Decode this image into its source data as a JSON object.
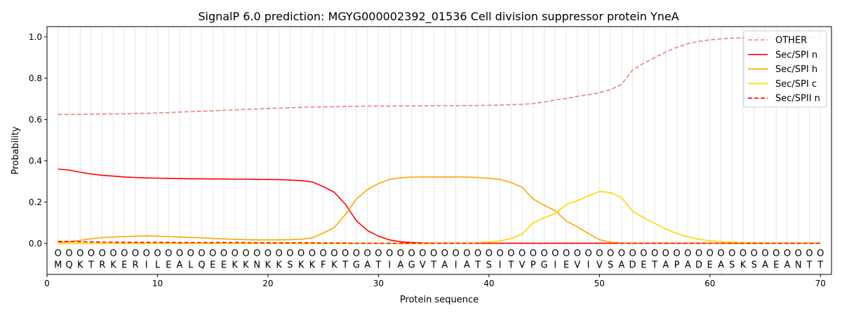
{
  "chart_data": {
    "type": "line",
    "title": "SignalP 6.0 prediction: MGYG000002392_01536 Cell division suppressor protein YneA",
    "xlabel": "Protein sequence",
    "ylabel": "Probability",
    "xlim": [
      0,
      71
    ],
    "ylim": [
      -0.15,
      1.05
    ],
    "xticks": [
      0,
      10,
      20,
      30,
      40,
      50,
      60,
      70
    ],
    "yticks": [
      "0.0",
      "0.2",
      "0.4",
      "0.6",
      "0.8",
      "1.0"
    ],
    "legend_position": "top-right",
    "sequence": [
      "M",
      "Q",
      "K",
      "T",
      "R",
      "K",
      "E",
      "R",
      "I",
      "L",
      "E",
      "A",
      "L",
      "Q",
      "E",
      "E",
      "K",
      "K",
      "N",
      "K",
      "K",
      "S",
      "K",
      "K",
      "F",
      "K",
      "T",
      "G",
      "A",
      "T",
      "I",
      "A",
      "G",
      "V",
      "T",
      "A",
      "I",
      "A",
      "T",
      "S",
      "I",
      "T",
      "V",
      "P",
      "G",
      "I",
      "E",
      "V",
      "I",
      "V",
      "S",
      "A",
      "D",
      "E",
      "T",
      "A",
      "P",
      "A",
      "D",
      "E",
      "A",
      "S",
      "K",
      "S",
      "A",
      "E",
      "A",
      "N",
      "T",
      "T"
    ],
    "residue_marker": "O",
    "series": [
      {
        "name": "OTHER",
        "color": "#f08080",
        "dash": true,
        "values": [
          0.625,
          0.625,
          0.625,
          0.626,
          0.626,
          0.627,
          0.628,
          0.629,
          0.63,
          0.632,
          0.634,
          0.636,
          0.638,
          0.64,
          0.642,
          0.645,
          0.647,
          0.649,
          0.651,
          0.653,
          0.655,
          0.657,
          0.659,
          0.66,
          0.661,
          0.662,
          0.663,
          0.664,
          0.665,
          0.665,
          0.665,
          0.666,
          0.666,
          0.666,
          0.667,
          0.667,
          0.667,
          0.668,
          0.668,
          0.669,
          0.67,
          0.672,
          0.674,
          0.677,
          0.685,
          0.695,
          0.702,
          0.712,
          0.72,
          0.73,
          0.745,
          0.77,
          0.84,
          0.872,
          0.9,
          0.927,
          0.95,
          0.967,
          0.978,
          0.986,
          0.99,
          0.994,
          0.996,
          0.997,
          0.998,
          0.999,
          0.999,
          1.0,
          1.0,
          1.0
        ]
      },
      {
        "name": "Sec/SPI n",
        "color": "#ff0000",
        "dash": false,
        "values": [
          0.36,
          0.355,
          0.345,
          0.336,
          0.33,
          0.326,
          0.322,
          0.319,
          0.317,
          0.316,
          0.315,
          0.314,
          0.313,
          0.313,
          0.312,
          0.312,
          0.311,
          0.311,
          0.31,
          0.31,
          0.309,
          0.307,
          0.304,
          0.298,
          0.275,
          0.248,
          0.19,
          0.11,
          0.063,
          0.035,
          0.017,
          0.008,
          0.004,
          0.002,
          0.001,
          0.001,
          0.001,
          0.001,
          0.001,
          0.001,
          0.001,
          0.001,
          0.001,
          0.001,
          0.001,
          0.001,
          0.001,
          0.001,
          0.001,
          0.001,
          0.001,
          0.001,
          0.001,
          0.001,
          0.001,
          0.001,
          0.001,
          0.001,
          0.001,
          0.001,
          0.001,
          0.001,
          0.001,
          0.001,
          0.001,
          0.001,
          0.001,
          0.001,
          0.001,
          0.001
        ]
      },
      {
        "name": "Sec/SPI h",
        "color": "#ffa500",
        "dash": false,
        "values": [
          0.005,
          0.008,
          0.015,
          0.023,
          0.028,
          0.031,
          0.033,
          0.035,
          0.036,
          0.035,
          0.033,
          0.031,
          0.029,
          0.027,
          0.024,
          0.022,
          0.02,
          0.018,
          0.017,
          0.017,
          0.017,
          0.018,
          0.02,
          0.027,
          0.05,
          0.077,
          0.14,
          0.215,
          0.26,
          0.29,
          0.31,
          0.318,
          0.321,
          0.322,
          0.322,
          0.322,
          0.322,
          0.321,
          0.319,
          0.315,
          0.31,
          0.295,
          0.272,
          0.215,
          0.185,
          0.158,
          0.108,
          0.08,
          0.048,
          0.018,
          0.006,
          0.002,
          0.001,
          0.001,
          0.001,
          0.001,
          0.001,
          0.001,
          0.001,
          0.001,
          0.001,
          0.001,
          0.001,
          0.001,
          0.001,
          0.001,
          0.001,
          0.001,
          0.001,
          0.001
        ]
      },
      {
        "name": "Sec/SPI c",
        "color": "#ffd700",
        "dash": false,
        "values": [
          0.0,
          0.0,
          0.0,
          0.0,
          0.0,
          0.0,
          0.0,
          0.0,
          0.0,
          0.0,
          0.0,
          0.0,
          0.0,
          0.0,
          0.0,
          0.0,
          0.0,
          0.0,
          0.0,
          0.0,
          0.0,
          0.0,
          0.0,
          0.0,
          0.0,
          0.0,
          0.0,
          0.0,
          0.0,
          0.0,
          0.0,
          0.0,
          0.0,
          0.0,
          0.0,
          0.0,
          0.0,
          0.001,
          0.003,
          0.007,
          0.012,
          0.024,
          0.045,
          0.1,
          0.125,
          0.145,
          0.188,
          0.207,
          0.23,
          0.252,
          0.246,
          0.222,
          0.155,
          0.125,
          0.097,
          0.07,
          0.048,
          0.032,
          0.02,
          0.013,
          0.009,
          0.006,
          0.004,
          0.003,
          0.002,
          0.001,
          0.001,
          0.001,
          0.001,
          0.001
        ]
      },
      {
        "name": "Sec/SPII n",
        "color": "#ff0000",
        "dash": true,
        "values": [
          0.01,
          0.009,
          0.008,
          0.007,
          0.006,
          0.006,
          0.005,
          0.005,
          0.005,
          0.005,
          0.005,
          0.004,
          0.004,
          0.004,
          0.004,
          0.004,
          0.004,
          0.004,
          0.003,
          0.003,
          0.003,
          0.003,
          0.003,
          0.003,
          0.002,
          0.002,
          0.002,
          0.001,
          0.001,
          0.001,
          0.001,
          0.001,
          0.001,
          0.001,
          0.001,
          0.001,
          0.001,
          0.001,
          0.001,
          0.001,
          0.001,
          0.001,
          0.001,
          0.001,
          0.001,
          0.001,
          0.001,
          0.001,
          0.001,
          0.001,
          0.001,
          0.001,
          0.001,
          0.001,
          0.001,
          0.001,
          0.001,
          0.001,
          0.001,
          0.001,
          0.001,
          0.001,
          0.001,
          0.001,
          0.001,
          0.001,
          0.001,
          0.001,
          0.001,
          0.001
        ]
      }
    ]
  }
}
